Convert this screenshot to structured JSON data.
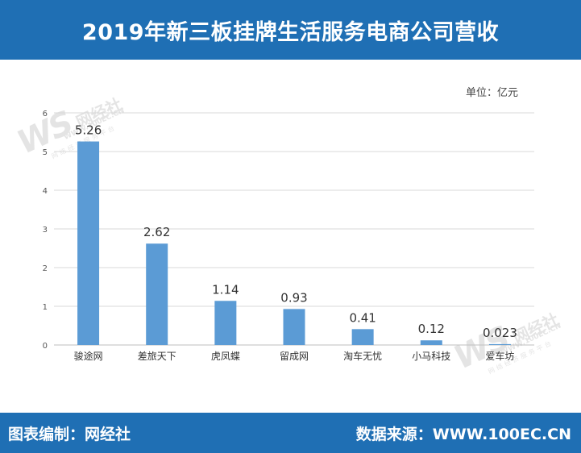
{
  "header": {
    "title": "2019年新三板挂牌生活服务电商公司营收"
  },
  "footer": {
    "left": "图表编制：网经社",
    "right": "数据来源：WWW.100EC.CN"
  },
  "watermark": {
    "mark": "WS",
    "name": "网经社",
    "url": "WWW.100EC.CN",
    "sub": "网络经济服务平台"
  },
  "colors": {
    "bar": "#5b9bd5",
    "header_bg": "#1f6fb4",
    "grid": "#d9d9d9"
  },
  "chart_data": {
    "type": "bar",
    "title": "2019年新三板挂牌生活服务电商公司营收",
    "unit": "单位：亿元",
    "categories": [
      "骏途网",
      "差旅天下",
      "虎凤蝶",
      "留成网",
      "淘车无忧",
      "小马科技",
      "爱车坊"
    ],
    "values": [
      5.26,
      2.62,
      1.14,
      0.93,
      0.41,
      0.12,
      0.023
    ],
    "value_labels": [
      "5.26",
      "2.62",
      "1.14",
      "0.93",
      "0.41",
      "0.12",
      "0.023"
    ],
    "yticks": [
      0,
      1,
      2,
      3,
      4,
      5,
      6
    ],
    "ylim": [
      0,
      6
    ],
    "grid": true,
    "xlabel": "",
    "ylabel": ""
  }
}
